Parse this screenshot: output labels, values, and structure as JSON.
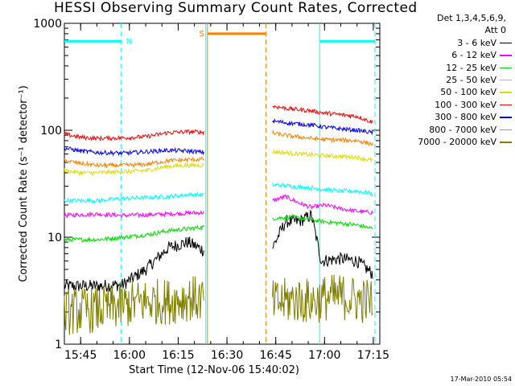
{
  "title": "HESSI Observing Summary Count Rates, Corrected",
  "footer_timestamp": "17-Mar-2010 05:54",
  "legend": {
    "header": "Det 1,3,4,5,6,9,\nAtt 0",
    "items": [
      {
        "label": "3 - 6 keV",
        "color": "#000000"
      },
      {
        "label": "6 - 12 keV",
        "color": "#ff00ff"
      },
      {
        "label": "12 - 25 keV",
        "color": "#00dd00"
      },
      {
        "label": "25 - 50 keV",
        "color": "#00ffff"
      },
      {
        "label": "50 - 100 keV",
        "color": "#dddd00"
      },
      {
        "label": "100 - 300 keV",
        "color": "#ff0000"
      },
      {
        "label": "300 - 800 keV",
        "color": "#0000ff"
      },
      {
        "label": "800 - 7000 keV",
        "color": "#ff8000"
      },
      {
        "label": "7000 - 20000 keV",
        "color": "#808000"
      }
    ]
  },
  "chart_data": {
    "type": "line",
    "title": "HESSI Observing Summary Count Rates, Corrected",
    "xlabel": "Start Time (12-Nov-06 15:40:02)",
    "ylabel": "Corrected Count Rate (s⁻¹ detector⁻¹)",
    "yscale": "log",
    "ylim": [
      1,
      1000
    ],
    "yticks": [
      1,
      10,
      100,
      1000
    ],
    "yticklabels": [
      "1",
      "10",
      "100",
      "1000"
    ],
    "xlim": [
      "15:40",
      "17:17"
    ],
    "xticks": [
      "15:45",
      "16:00",
      "16:15",
      "16:30",
      "16:45",
      "17:00",
      "17:15"
    ],
    "gaps": [
      [
        "16:24",
        "16:44"
      ]
    ],
    "vertical_markers": [
      {
        "time": "15:57.5",
        "color": "#00ffff",
        "style": "dashed"
      },
      {
        "time": "16:23.5",
        "color": "#00ffff",
        "style": "solid"
      },
      {
        "time": "16:24",
        "color": "#ff8000",
        "style": "solid"
      },
      {
        "time": "16:42",
        "color": "#ff8000",
        "style": "dashed"
      },
      {
        "time": "16:58.5",
        "color": "#00ffff",
        "style": "solid"
      },
      {
        "time": "17:15.5",
        "color": "#00ffff",
        "style": "dashed"
      }
    ],
    "annotations": [
      {
        "label": "N",
        "color": "#00ffff",
        "x_start": "15:40",
        "x_end": "15:57.5",
        "y": 680
      },
      {
        "label": "",
        "color": "#00ffff",
        "x_start": "16:58.5",
        "x_end": "17:15.5",
        "y": 680
      },
      {
        "label": "S",
        "color": "#ff8000",
        "x_start": "16:24",
        "x_end": "16:42",
        "y": 800
      }
    ],
    "series": [
      {
        "name": "3 - 6 keV",
        "color": "#000000",
        "x": [
          "15:40",
          "15:50",
          "15:58",
          "16:05",
          "16:12",
          "16:18",
          "16:23",
          "16:44",
          "16:48",
          "16:52",
          "16:56",
          "16:59",
          "17:05",
          "17:10",
          "17:15"
        ],
        "y": [
          3.5,
          3.5,
          3.6,
          5,
          8,
          9,
          7.5,
          8,
          14,
          14,
          16,
          6,
          6.3,
          6,
          4.5
        ]
      },
      {
        "name": "6 - 12 keV",
        "color": "#ff00ff",
        "x": [
          "15:40",
          "15:50",
          "15:58",
          "16:05",
          "16:12",
          "16:18",
          "16:23",
          "16:44",
          "16:48",
          "16:52",
          "16:56",
          "17:00",
          "17:05",
          "17:10",
          "17:15"
        ],
        "y": [
          16,
          16.5,
          16,
          16.2,
          16.5,
          16.8,
          17,
          22,
          24,
          21,
          19,
          20,
          18.5,
          17.5,
          17
        ]
      },
      {
        "name": "12 - 25 keV",
        "color": "#00dd00",
        "x": [
          "15:40",
          "15:50",
          "15:58",
          "16:05",
          "16:12",
          "16:18",
          "16:23",
          "16:44",
          "16:50",
          "16:56",
          "17:00",
          "17:05",
          "17:10",
          "17:15"
        ],
        "y": [
          9.5,
          9.5,
          10,
          10.5,
          11.5,
          12,
          12.5,
          15,
          15.5,
          14.5,
          14,
          13.5,
          13,
          12
        ]
      },
      {
        "name": "25 - 50 keV",
        "color": "#00ffff",
        "x": [
          "15:40",
          "15:50",
          "15:58",
          "16:05",
          "16:12",
          "16:18",
          "16:23",
          "16:44",
          "16:50",
          "16:56",
          "17:00",
          "17:05",
          "17:10",
          "17:15"
        ],
        "y": [
          22,
          22,
          23,
          23.5,
          24,
          25,
          25,
          31,
          30,
          29,
          28,
          27,
          27,
          25.5
        ]
      },
      {
        "name": "50 - 100 keV",
        "color": "#dddd00",
        "x": [
          "15:40",
          "15:45",
          "15:50",
          "15:58",
          "16:05",
          "16:12",
          "16:18",
          "16:23",
          "16:44",
          "16:50",
          "16:56",
          "17:00",
          "17:05",
          "17:10",
          "17:15"
        ],
        "y": [
          42,
          40,
          40,
          41,
          42,
          46,
          47,
          47,
          63,
          61,
          59,
          58,
          57,
          56,
          52
        ]
      },
      {
        "name": "100 - 300 keV",
        "color": "#ff0000",
        "x": [
          "15:40",
          "15:45",
          "15:50",
          "15:58",
          "16:05",
          "16:12",
          "16:18",
          "16:23",
          "16:44",
          "16:50",
          "16:56",
          "17:00",
          "17:05",
          "17:10",
          "17:15"
        ],
        "y": [
          92,
          86,
          84,
          85,
          87,
          95,
          97,
          96,
          168,
          158,
          152,
          145,
          140,
          135,
          118
        ]
      },
      {
        "name": "300 - 800 keV",
        "color": "#0000ff",
        "x": [
          "15:40",
          "15:45",
          "15:50",
          "15:58",
          "16:05",
          "16:12",
          "16:18",
          "16:23",
          "16:44",
          "16:50",
          "16:56",
          "17:00",
          "17:05",
          "17:10",
          "17:15"
        ],
        "y": [
          68,
          64,
          62,
          61,
          63,
          65,
          64,
          62,
          122,
          116,
          112,
          107,
          103,
          100,
          95
        ]
      },
      {
        "name": "800 - 7000 keV",
        "color": "#ff8000",
        "x": [
          "15:40",
          "15:45",
          "15:50",
          "15:58",
          "16:05",
          "16:12",
          "16:18",
          "16:23",
          "16:44",
          "16:50",
          "16:56",
          "17:00",
          "17:05",
          "17:10",
          "17:15"
        ],
        "y": [
          52,
          49,
          47,
          47,
          48,
          52,
          53,
          54,
          94,
          88,
          84,
          82,
          81,
          80,
          74
        ]
      },
      {
        "name": "7000 - 20000 keV",
        "color": "#808000",
        "x": [
          "15:40",
          "15:50",
          "15:58",
          "16:05",
          "16:12",
          "16:18",
          "16:23",
          "16:44",
          "16:50",
          "16:56",
          "17:00",
          "17:05",
          "17:10",
          "17:15"
        ],
        "y": [
          2.0,
          2.1,
          2.3,
          2.5,
          2.5,
          2.7,
          2.6,
          2.4,
          2.6,
          2.5,
          2.7,
          2.8,
          2.6,
          2.5
        ]
      }
    ]
  }
}
